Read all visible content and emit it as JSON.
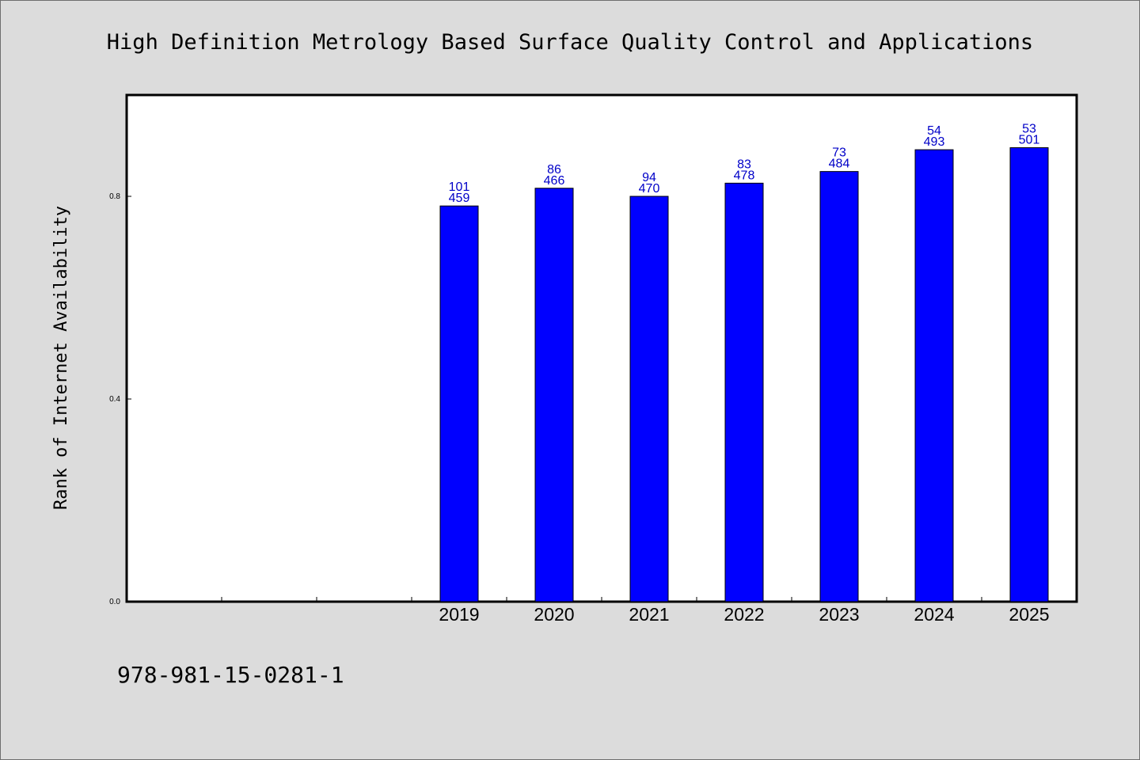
{
  "chart_data": {
    "type": "bar",
    "title": "High Definition Metrology Based Surface Quality Control and Applications",
    "ylabel": "Rank of Internet Availability",
    "footer": "978-981-15-0281-1",
    "categories": [
      "2019",
      "2020",
      "2021",
      "2022",
      "2023",
      "2024",
      "2025"
    ],
    "values": [
      0.781,
      0.816,
      0.8,
      0.826,
      0.849,
      0.892,
      0.896
    ],
    "label_top": [
      "101",
      "86",
      "94",
      "83",
      "73",
      "54",
      "53"
    ],
    "label_bottom": [
      "459",
      "466",
      "470",
      "478",
      "484",
      "493",
      "501"
    ],
    "empty_leading_slots": 3,
    "yticks": [
      "0.0",
      "0.4",
      "0.8"
    ],
    "ylim": [
      0,
      1.0
    ],
    "grid": false,
    "legend": "none",
    "colors": {
      "bar": "#0000ff",
      "label": "#0000c8",
      "background": "#dcdcdc",
      "plot": "#ffffff"
    }
  }
}
